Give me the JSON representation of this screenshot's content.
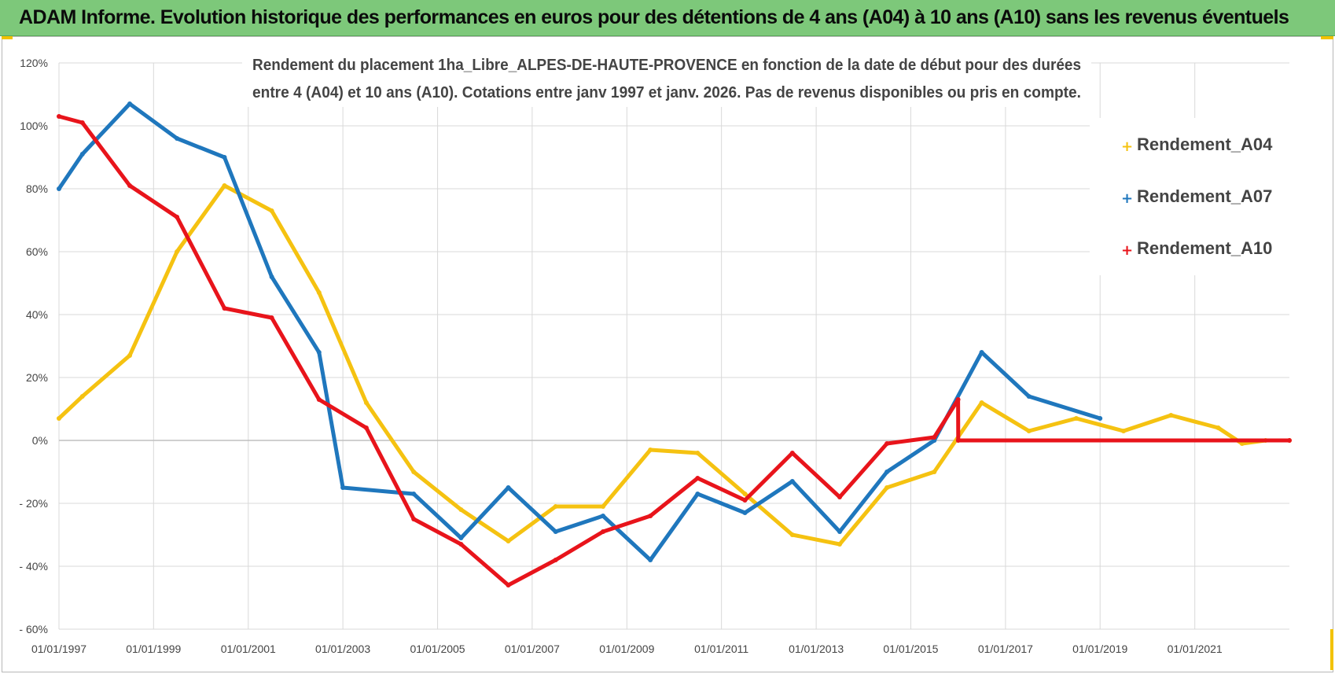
{
  "header": {
    "title": "ADAM Informe. Evolution historique des performances en euros pour des détentions de 4 ans (A04) à 10 ans (A10) sans les revenus éventuels"
  },
  "colors": {
    "header_bg": "#7dc87a",
    "corner_accent": "#f2c200",
    "grid": "#d9d9d9"
  },
  "chart_data": {
    "type": "line",
    "subtitle_line1": "Rendement du placement 1ha_Libre_ALPES-DE-HAUTE-PROVENCE en fonction de la date de début pour des durées",
    "subtitle_line2": "entre 4 (A04) et 10 ans (A10).  Cotations entre janv 1997 et janv. 2026. Pas de revenus disponibles ou pris  en compte.",
    "xlabel": "",
    "ylabel": "",
    "xlim": [
      "01/01/1997",
      "01/01/2023"
    ],
    "ylim": [
      -60,
      120
    ],
    "x_ticks": [
      "01/01/1997",
      "01/01/1999",
      "01/01/2001",
      "01/01/2003",
      "01/01/2005",
      "01/01/2007",
      "01/01/2009",
      "01/01/2011",
      "01/01/2013",
      "01/01/2015",
      "01/01/2017",
      "01/01/2019",
      "01/01/2021"
    ],
    "y_ticks": [
      {
        "value": 120,
        "label": "120%"
      },
      {
        "value": 100,
        "label": "100%"
      },
      {
        "value": 80,
        "label": "80%"
      },
      {
        "value": 60,
        "label": "60%"
      },
      {
        "value": 40,
        "label": "40%"
      },
      {
        "value": 20,
        "label": "20%"
      },
      {
        "value": 0,
        "label": "0%"
      },
      {
        "value": -20,
        "label": "- 20%"
      },
      {
        "value": -40,
        "label": "- 40%"
      },
      {
        "value": -60,
        "label": "- 60%"
      }
    ],
    "grid": true,
    "legend_position": "top-right",
    "series": [
      {
        "name": "Rendement_A04",
        "color": "#f5c211",
        "points": [
          [
            "1997-01-01",
            7
          ],
          [
            "1997-07-01",
            14
          ],
          [
            "1998-07-01",
            27
          ],
          [
            "1999-07-01",
            60
          ],
          [
            "2000-07-01",
            81
          ],
          [
            "2001-07-01",
            73
          ],
          [
            "2002-07-01",
            47
          ],
          [
            "2003-07-01",
            12
          ],
          [
            "2004-07-01",
            -10
          ],
          [
            "2005-07-01",
            -22
          ],
          [
            "2006-07-01",
            -32
          ],
          [
            "2007-07-01",
            -21
          ],
          [
            "2008-07-01",
            -21
          ],
          [
            "2009-07-01",
            -3
          ],
          [
            "2010-07-01",
            -4
          ],
          [
            "2011-07-01",
            -17
          ],
          [
            "2012-07-01",
            -30
          ],
          [
            "2013-07-01",
            -33
          ],
          [
            "2014-07-01",
            -15
          ],
          [
            "2015-07-01",
            -10
          ],
          [
            "2016-07-01",
            12
          ],
          [
            "2017-07-01",
            3
          ],
          [
            "2018-07-01",
            7
          ],
          [
            "2019-07-01",
            3
          ],
          [
            "2020-07-01",
            8
          ],
          [
            "2021-07-01",
            4
          ],
          [
            "2022-01-01",
            -1
          ],
          [
            "2022-07-01",
            0
          ],
          [
            "2023-01-01",
            0
          ]
        ]
      },
      {
        "name": "Rendement_A07",
        "color": "#1f77bd",
        "points": [
          [
            "1997-01-01",
            80
          ],
          [
            "1997-07-01",
            91
          ],
          [
            "1998-07-01",
            107
          ],
          [
            "1999-07-01",
            96
          ],
          [
            "2000-07-01",
            90
          ],
          [
            "2001-07-01",
            52
          ],
          [
            "2002-07-01",
            28
          ],
          [
            "2003-01-01",
            -15
          ],
          [
            "2004-07-01",
            -17
          ],
          [
            "2005-07-01",
            -31
          ],
          [
            "2006-07-01",
            -15
          ],
          [
            "2007-07-01",
            -29
          ],
          [
            "2008-07-01",
            -24
          ],
          [
            "2009-07-01",
            -38
          ],
          [
            "2010-07-01",
            -17
          ],
          [
            "2011-07-01",
            -23
          ],
          [
            "2012-07-01",
            -13
          ],
          [
            "2013-07-01",
            -29
          ],
          [
            "2014-07-01",
            -10
          ],
          [
            "2015-07-01",
            0
          ],
          [
            "2016-07-01",
            28
          ],
          [
            "2017-07-01",
            14
          ],
          [
            "2019-01-01",
            7
          ]
        ]
      },
      {
        "name": "Rendement_A10",
        "color": "#e8141b",
        "points": [
          [
            "1997-01-01",
            103
          ],
          [
            "1997-07-01",
            101
          ],
          [
            "1998-07-01",
            81
          ],
          [
            "1999-07-01",
            71
          ],
          [
            "2000-07-01",
            42
          ],
          [
            "2001-07-01",
            39
          ],
          [
            "2002-07-01",
            13
          ],
          [
            "2003-07-01",
            4
          ],
          [
            "2004-07-01",
            -25
          ],
          [
            "2005-07-01",
            -33
          ],
          [
            "2006-07-01",
            -46
          ],
          [
            "2007-07-01",
            -38
          ],
          [
            "2008-07-01",
            -29
          ],
          [
            "2009-07-01",
            -24
          ],
          [
            "2010-07-01",
            -12
          ],
          [
            "2011-07-01",
            -19
          ],
          [
            "2012-07-01",
            -4
          ],
          [
            "2013-07-01",
            -18
          ],
          [
            "2014-07-01",
            -1
          ],
          [
            "2015-07-01",
            1
          ],
          [
            "2016-01-01",
            13
          ],
          [
            "2016-01-02",
            0
          ],
          [
            "2023-01-01",
            0
          ]
        ]
      }
    ]
  }
}
